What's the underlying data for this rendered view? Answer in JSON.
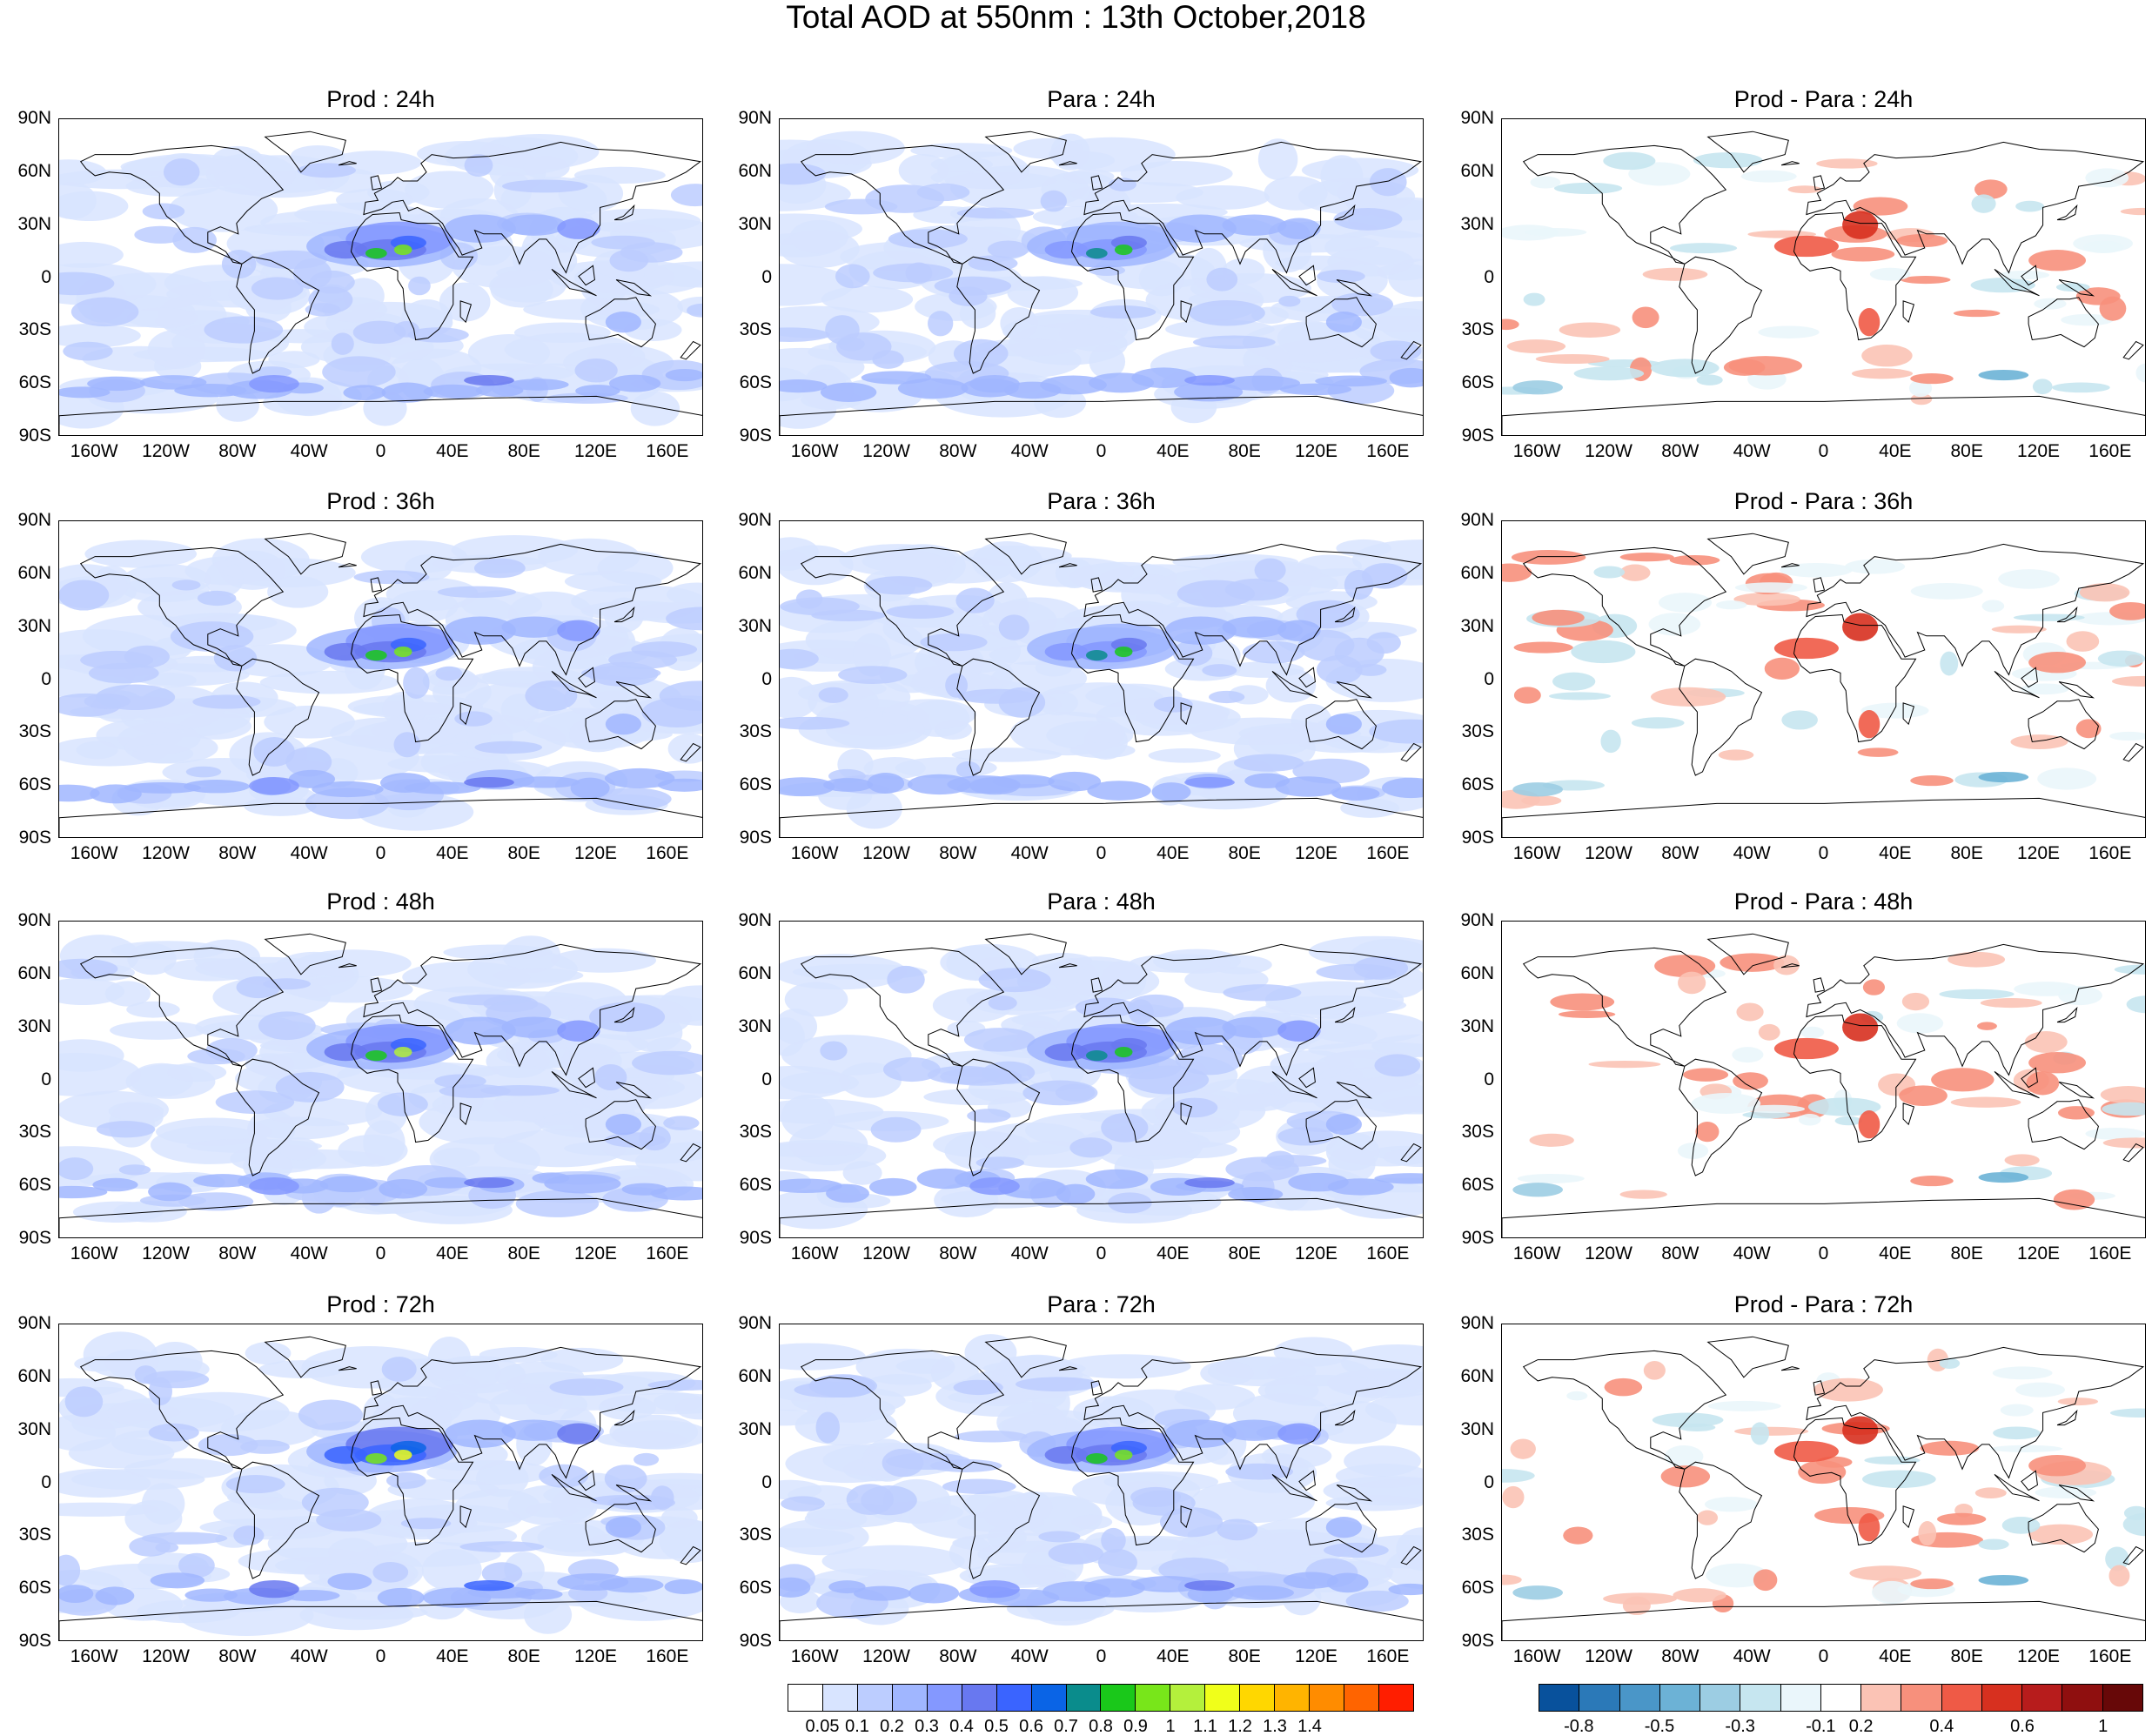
{
  "title": "Total AOD at 550nm : 13th October,2018",
  "lat_ticks": [
    "90N",
    "60N",
    "30N",
    "0",
    "30S",
    "60S",
    "90S"
  ],
  "lon_ticks": [
    "160W",
    "120W",
    "80W",
    "40W",
    "0",
    "40E",
    "80E",
    "120E",
    "160E"
  ],
  "panels": [
    {
      "id": "prod-24",
      "title": "Prod : 24h",
      "kind": "aod",
      "level": 1.0
    },
    {
      "id": "para-24",
      "title": "Para : 24h",
      "kind": "aod",
      "level": 0.85
    },
    {
      "id": "diff-24",
      "title": "Prod - Para : 24h",
      "kind": "diff",
      "level": 1.0
    },
    {
      "id": "prod-36",
      "title": "Prod : 36h",
      "kind": "aod",
      "level": 1.0
    },
    {
      "id": "para-36",
      "title": "Para : 36h",
      "kind": "aod",
      "level": 0.85
    },
    {
      "id": "diff-36",
      "title": "Prod - Para : 36h",
      "kind": "diff",
      "level": 1.1
    },
    {
      "id": "prod-48",
      "title": "Prod : 48h",
      "kind": "aod",
      "level": 1.05
    },
    {
      "id": "para-48",
      "title": "Para : 48h",
      "kind": "aod",
      "level": 0.9
    },
    {
      "id": "diff-48",
      "title": "Prod - Para : 48h",
      "kind": "diff",
      "level": 1.1
    },
    {
      "id": "prod-72",
      "title": "Prod : 72h",
      "kind": "aod",
      "level": 1.15
    },
    {
      "id": "para-72",
      "title": "Para : 72h",
      "kind": "aod",
      "level": 1.0
    },
    {
      "id": "diff-72",
      "title": "Prod - Para : 72h",
      "kind": "diff",
      "level": 1.2
    }
  ],
  "aod_colorbar": {
    "colors": [
      "#ffffff",
      "#d8e4ff",
      "#bccdff",
      "#a0b6ff",
      "#8498ff",
      "#6878f0",
      "#3a64ff",
      "#0a64e6",
      "#0a8c8c",
      "#1ac81a",
      "#78e61a",
      "#b4f03c",
      "#f0ff1a",
      "#ffd700",
      "#ffb400",
      "#ff8c00",
      "#ff6400",
      "#ff1e00"
    ],
    "labels": [
      "0.05",
      "0.1",
      "0.2",
      "0.3",
      "0.4",
      "0.5",
      "0.6",
      "0.7",
      "0.8",
      "0.9",
      "1",
      "1.1",
      "1.2",
      "1.3",
      "1.4"
    ]
  },
  "diff_colorbar": {
    "colors": [
      "#08519c",
      "#2b79b8",
      "#4a96c8",
      "#6cb2d6",
      "#9ccde3",
      "#c6e6f0",
      "#eaf6fb",
      "#ffffff",
      "#fbc3b5",
      "#f7907c",
      "#ef5a46",
      "#d7301f",
      "#b71c1c",
      "#8f0f0f",
      "#670808"
    ],
    "labels": [
      "-0.8",
      "-0.5",
      "-0.3",
      "-0.1",
      "0.2",
      "0.4",
      "0.6",
      "1"
    ]
  }
}
